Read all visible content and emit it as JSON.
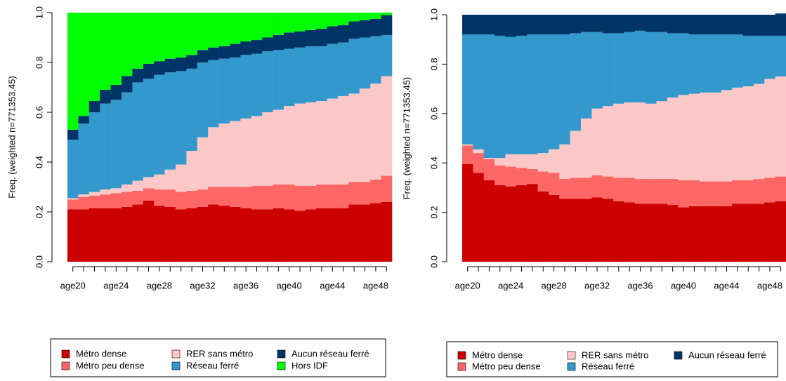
{
  "chart_data": [
    {
      "type": "bar",
      "stacked": true,
      "ylabel": "Freq. (weighted n=771353.45)",
      "legend": "bottom",
      "categories": [
        "age20",
        null,
        null,
        null,
        "age24",
        null,
        null,
        null,
        "age28",
        null,
        null,
        null,
        "age32",
        null,
        null,
        null,
        "age36",
        null,
        null,
        null,
        "age40",
        null,
        null,
        null,
        "age44",
        null,
        null,
        null,
        "age48",
        null
      ],
      "ylim": [
        0,
        1
      ],
      "yticks": [
        {
          "value": 0,
          "label": "0.0"
        },
        0.2,
        0.4,
        0.6,
        0.8,
        {
          "value": 1,
          "label": "1.0"
        }
      ],
      "series": [
        {
          "name": "Métro dense",
          "color": "#cc0000",
          "values": [
            0.21,
            0.21,
            0.215,
            0.215,
            0.215,
            0.22,
            0.23,
            0.245,
            0.225,
            0.22,
            0.21,
            0.215,
            0.22,
            0.23,
            0.225,
            0.22,
            0.215,
            0.21,
            0.21,
            0.215,
            0.21,
            0.205,
            0.21,
            0.215,
            0.215,
            0.215,
            0.23,
            0.23,
            0.235,
            0.24
          ]
        },
        {
          "name": "Métro peu dense",
          "color": "#ff6666",
          "values": [
            0.04,
            0.05,
            0.05,
            0.055,
            0.06,
            0.06,
            0.055,
            0.05,
            0.065,
            0.07,
            0.07,
            0.07,
            0.07,
            0.07,
            0.075,
            0.08,
            0.085,
            0.095,
            0.095,
            0.095,
            0.1,
            0.1,
            0.095,
            0.095,
            0.095,
            0.095,
            0.09,
            0.09,
            0.095,
            0.105
          ]
        },
        {
          "name": "RER sans métro",
          "color": "#ffc8c8",
          "values": [
            0.005,
            0.01,
            0.015,
            0.02,
            0.02,
            0.03,
            0.04,
            0.045,
            0.06,
            0.08,
            0.11,
            0.16,
            0.21,
            0.24,
            0.255,
            0.265,
            0.275,
            0.28,
            0.295,
            0.3,
            0.315,
            0.33,
            0.335,
            0.335,
            0.345,
            0.355,
            0.355,
            0.375,
            0.385,
            0.4
          ]
        },
        {
          "name": "Réseau ferré",
          "color": "#3399cc",
          "values": [
            0.235,
            0.285,
            0.32,
            0.345,
            0.355,
            0.37,
            0.395,
            0.395,
            0.4,
            0.39,
            0.375,
            0.33,
            0.3,
            0.27,
            0.26,
            0.255,
            0.255,
            0.25,
            0.245,
            0.24,
            0.23,
            0.225,
            0.225,
            0.22,
            0.22,
            0.215,
            0.22,
            0.205,
            0.19,
            0.165
          ]
        },
        {
          "name": "Aucun réseau ferré",
          "color": "#003366",
          "values": [
            0.04,
            0.03,
            0.045,
            0.055,
            0.06,
            0.065,
            0.055,
            0.06,
            0.055,
            0.055,
            0.055,
            0.055,
            0.05,
            0.05,
            0.05,
            0.055,
            0.055,
            0.055,
            0.055,
            0.06,
            0.065,
            0.065,
            0.065,
            0.07,
            0.07,
            0.07,
            0.07,
            0.07,
            0.07,
            0.08
          ]
        },
        {
          "name": "Hors IDF",
          "color": "#00ff00",
          "values": [
            0.47,
            0.415,
            0.355,
            0.31,
            0.29,
            0.255,
            0.225,
            0.205,
            0.195,
            0.185,
            0.18,
            0.17,
            0.15,
            0.14,
            0.135,
            0.125,
            0.115,
            0.11,
            0.1,
            0.09,
            0.08,
            0.075,
            0.07,
            0.065,
            0.055,
            0.05,
            0.035,
            0.03,
            0.025,
            0.01
          ]
        }
      ]
    },
    {
      "type": "bar",
      "stacked": true,
      "ylabel": "Freq. (weighted n=771353.45)",
      "legend": "bottom",
      "categories": [
        "age20",
        null,
        null,
        null,
        "age24",
        null,
        null,
        null,
        "age28",
        null,
        null,
        null,
        "age32",
        null,
        null,
        null,
        "age36",
        null,
        null,
        null,
        "age40",
        null,
        null,
        null,
        "age44",
        null,
        null,
        null,
        "age48",
        null
      ],
      "ylim": [
        0,
        1
      ],
      "yticks": [
        {
          "value": 0,
          "label": "0.0"
        },
        0.2,
        0.4,
        0.6,
        0.8,
        {
          "value": 1,
          "label": "1.0"
        }
      ],
      "series": [
        {
          "name": "Métro dense",
          "color": "#cc0000",
          "values": [
            0.395,
            0.36,
            0.33,
            0.31,
            0.305,
            0.31,
            0.315,
            0.285,
            0.27,
            0.255,
            0.255,
            0.255,
            0.26,
            0.255,
            0.245,
            0.24,
            0.235,
            0.235,
            0.235,
            0.23,
            0.22,
            0.225,
            0.225,
            0.225,
            0.225,
            0.235,
            0.235,
            0.235,
            0.24,
            0.245
          ]
        },
        {
          "name": "Métro peu dense",
          "color": "#ff6666",
          "values": [
            0.075,
            0.08,
            0.085,
            0.08,
            0.08,
            0.07,
            0.06,
            0.08,
            0.09,
            0.08,
            0.085,
            0.085,
            0.09,
            0.09,
            0.095,
            0.1,
            0.1,
            0.1,
            0.1,
            0.105,
            0.11,
            0.105,
            0.1,
            0.1,
            0.1,
            0.095,
            0.095,
            0.1,
            0.1,
            0.1
          ]
        },
        {
          "name": "RER sans métro",
          "color": "#ffc8c8",
          "values": [
            0.005,
            0.015,
            0.005,
            0.03,
            0.05,
            0.055,
            0.06,
            0.075,
            0.095,
            0.14,
            0.19,
            0.24,
            0.27,
            0.285,
            0.3,
            0.305,
            0.31,
            0.305,
            0.315,
            0.33,
            0.345,
            0.35,
            0.36,
            0.36,
            0.37,
            0.375,
            0.38,
            0.385,
            0.4,
            0.405
          ]
        },
        {
          "name": "Réseau ferré",
          "color": "#3399cc",
          "values": [
            0.445,
            0.465,
            0.5,
            0.495,
            0.475,
            0.48,
            0.485,
            0.48,
            0.465,
            0.445,
            0.395,
            0.35,
            0.31,
            0.295,
            0.285,
            0.285,
            0.29,
            0.29,
            0.28,
            0.26,
            0.25,
            0.24,
            0.235,
            0.235,
            0.225,
            0.215,
            0.205,
            0.195,
            0.175,
            0.165
          ]
        },
        {
          "name": "Aucun réseau ferré",
          "color": "#003366",
          "values": [
            0.08,
            0.08,
            0.08,
            0.085,
            0.09,
            0.085,
            0.08,
            0.08,
            0.08,
            0.08,
            0.075,
            0.07,
            0.07,
            0.075,
            0.075,
            0.07,
            0.065,
            0.07,
            0.07,
            0.075,
            0.075,
            0.08,
            0.08,
            0.08,
            0.08,
            0.08,
            0.085,
            0.085,
            0.085,
            0.09
          ]
        }
      ]
    }
  ]
}
